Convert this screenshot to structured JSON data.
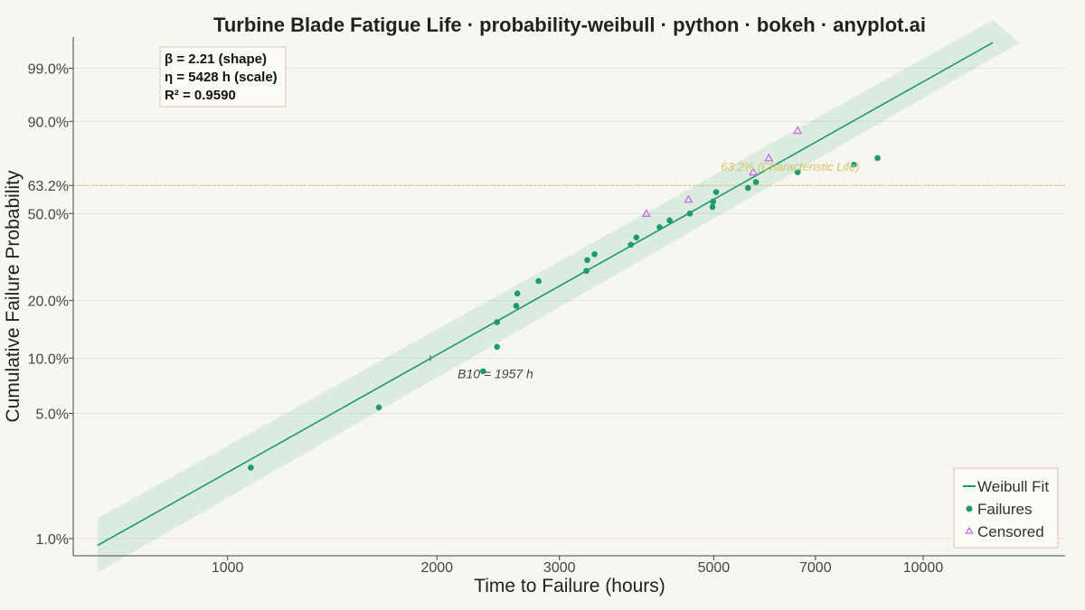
{
  "chart_data": {
    "type": "scatter",
    "title": "Turbine Blade Fatigue Life · probability-weibull · python · bokeh · anyplot.ai",
    "xlabel": "Time to Failure (hours)",
    "ylabel": "Cumulative Failure Probability",
    "x_scale": "log",
    "y_scale": "weibull",
    "xlim": [
      600,
      16000
    ],
    "ylim": [
      0.8,
      99.9
    ],
    "x_ticks": [
      1000,
      2000,
      3000,
      5000,
      7000,
      10000
    ],
    "x_tick_labels": [
      "1000",
      "2000",
      "3000",
      "5000",
      "7000",
      "10000"
    ],
    "y_ticks": [
      1.0,
      5.0,
      10.0,
      20.0,
      50.0,
      63.2,
      90.0,
      99.0
    ],
    "y_tick_labels": [
      "1.0%",
      "5.0%",
      "10.0%",
      "20.0%",
      "50.0%",
      "63.2%",
      "90.0%",
      "99.0%"
    ],
    "grid": "horizontal",
    "legend_position": "bottom-right",
    "fit": {
      "name": "Weibull Fit",
      "shape_beta": 2.21,
      "scale_eta": 5428,
      "x_range": [
        650,
        12600
      ],
      "color": "#1a9a6e"
    },
    "stats_lines": [
      "β = 2.21  (shape)",
      "η = 5428 h  (scale)",
      "R² = 0.9590"
    ],
    "characteristic_life": {
      "probability": 63.2,
      "label": "63.2% (Characteristic Life)",
      "color": "#d6c46a"
    },
    "b10": {
      "value": 1957,
      "probability": 10.0,
      "label": "B10 = 1957 h"
    },
    "series": [
      {
        "name": "Failures",
        "marker": "circle",
        "color": "#1a9a6e",
        "points": [
          [
            1080,
            2.5
          ],
          [
            1650,
            5.4
          ],
          [
            2330,
            8.5
          ],
          [
            2440,
            11.5
          ],
          [
            2440,
            15.5
          ],
          [
            2600,
            18.8
          ],
          [
            2610,
            21.7
          ],
          [
            2800,
            25.0
          ],
          [
            3280,
            28.0
          ],
          [
            3290,
            31.5
          ],
          [
            3370,
            33.5
          ],
          [
            3800,
            37.0
          ],
          [
            3870,
            39.8
          ],
          [
            4180,
            44.0
          ],
          [
            4320,
            47.0
          ],
          [
            4620,
            50.0
          ],
          [
            4980,
            53.0
          ],
          [
            4990,
            55.5
          ],
          [
            5040,
            60.0
          ],
          [
            5600,
            62.0
          ],
          [
            5750,
            64.8
          ],
          [
            6600,
            69.5
          ],
          [
            7950,
            73.0
          ],
          [
            8600,
            76.0
          ]
        ]
      },
      {
        "name": "Censored",
        "marker": "triangle",
        "color": "#c86ee6",
        "points": [
          [
            4000,
            50.0
          ],
          [
            4600,
            56.5
          ],
          [
            5700,
            69.5
          ],
          [
            6000,
            76.0
          ],
          [
            6600,
            87.0
          ]
        ]
      }
    ],
    "legend": [
      "Weibull Fit",
      "Failures",
      "Censored"
    ]
  }
}
